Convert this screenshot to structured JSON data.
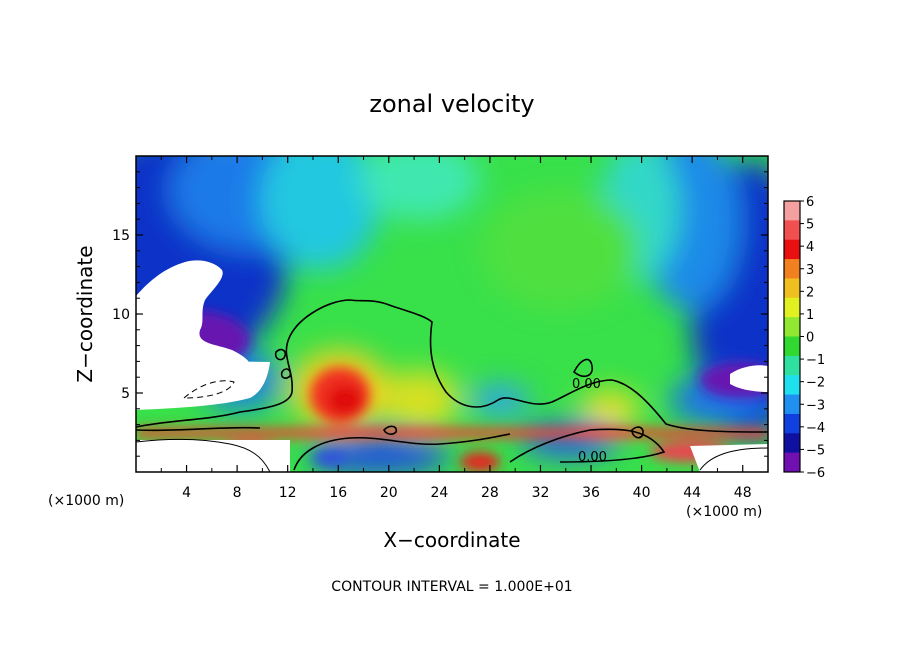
{
  "chart_data": {
    "type": "heatmap",
    "title": "zonal velocity",
    "xlabel": "X−coordinate",
    "ylabel": "Z−coordinate",
    "x_unit_left": "(×1000 m)",
    "x_unit_right": "(×1000 m)",
    "xlim": [
      0,
      50
    ],
    "ylim": [
      0,
      20
    ],
    "x_ticks": [
      4,
      8,
      12,
      16,
      20,
      24,
      28,
      32,
      36,
      40,
      44,
      48
    ],
    "y_ticks": [
      5,
      10,
      15
    ],
    "colorbar": {
      "levels": [
        6,
        5,
        4,
        3,
        2,
        1,
        0,
        -1,
        -2,
        -3,
        -4,
        -5,
        -6
      ],
      "tick_labels": [
        "6",
        "5",
        "4",
        "3",
        "2",
        "1",
        "0",
        "−1",
        "−2",
        "−3",
        "−4",
        "−5",
        "−6"
      ]
    },
    "contour_labels": [
      {
        "text": "0.00",
        "x": 36.8,
        "y": 5.5
      },
      {
        "text": "0.00",
        "x": 36.2,
        "y": 1.0
      }
    ],
    "annotation": "CONTOUR INTERVAL = 1.000E+01"
  }
}
